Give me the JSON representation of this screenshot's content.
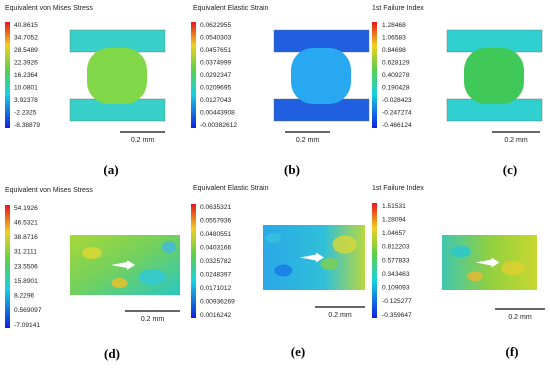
{
  "panels": [
    {
      "title": "Equivalent von Mises Stress",
      "ticks": [
        "40.8615",
        "34.7052",
        "28.5489",
        "22.3926",
        "16.2364",
        "10.0801",
        "3.92378",
        "-2.2325",
        "-8.38879"
      ],
      "scale": "0.2 mm",
      "caption": "(a)"
    },
    {
      "title": "Equivalent Elastic Strain",
      "ticks": [
        "0.0622955",
        "0.0540303",
        "0.0457651",
        "0.0374999",
        "0.0292347",
        "0.0209695",
        "0.0127043",
        "0.00443908",
        "-0.00382612"
      ],
      "scale": "0.2 mm",
      "caption": "(b)"
    },
    {
      "title": "1st Failure Index",
      "ticks": [
        "1.28468",
        "1.06583",
        "0.84698",
        "0.628129",
        "0.409278",
        "0.190428",
        "-0.028423",
        "-0.247274",
        "-0.466124"
      ],
      "scale": "0.2 mm",
      "caption": "(c)"
    },
    {
      "title": "Equivalent von Mises Stress",
      "ticks": [
        "54.1926",
        "46.5321",
        "38.8716",
        "31.2111",
        "23.5506",
        "15.8901",
        "8.2296",
        "0.569097",
        "-7.09141"
      ],
      "scale": "0.2 mm",
      "caption": "(d)"
    },
    {
      "title": "Equivalent Elastic Strain",
      "ticks": [
        "0.0635321",
        "0.0557936",
        "0.0480551",
        "0.0403166",
        "0.0325782",
        "0.0248397",
        "0.0171012",
        "0.00936269",
        "0.0016242"
      ],
      "scale": "0.2 mm",
      "caption": "(e)"
    },
    {
      "title": "1st Failure Index",
      "ticks": [
        "1.51531",
        "1.28094",
        "1.04657",
        "0.812203",
        "0.577833",
        "0.343463",
        "0.109093",
        "-0.125277",
        "-0.359647"
      ],
      "scale": "0.2 mm",
      "caption": "(f)"
    }
  ]
}
